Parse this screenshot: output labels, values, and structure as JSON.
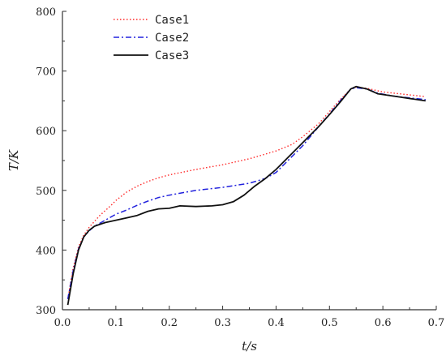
{
  "chart_data": {
    "type": "line",
    "title": "",
    "xlabel": "t/s",
    "ylabel": "T/K",
    "xlim": [
      0.0,
      0.7
    ],
    "ylim": [
      300,
      800
    ],
    "x_ticks": [
      0.0,
      0.1,
      0.2,
      0.3,
      0.4,
      0.5,
      0.6,
      0.7
    ],
    "x_tick_labels": [
      "0.0",
      "0.1",
      "0.2",
      "0.3",
      "0.4",
      "0.5",
      "0.6",
      "0.7"
    ],
    "y_ticks": [
      300,
      400,
      500,
      600,
      700,
      800
    ],
    "y_tick_labels": [
      "300",
      "400",
      "500",
      "600",
      "700",
      "800"
    ],
    "grid": false,
    "legend_position": "top-left",
    "series": [
      {
        "name": "Case1",
        "color": "#ff2a2a",
        "style": "dotted",
        "points": [
          [
            0.01,
            318
          ],
          [
            0.02,
            370
          ],
          [
            0.03,
            405
          ],
          [
            0.04,
            425
          ],
          [
            0.05,
            438
          ],
          [
            0.06,
            448
          ],
          [
            0.07,
            458
          ],
          [
            0.08,
            466
          ],
          [
            0.09,
            474
          ],
          [
            0.1,
            483
          ],
          [
            0.12,
            497
          ],
          [
            0.14,
            507
          ],
          [
            0.16,
            515
          ],
          [
            0.18,
            521
          ],
          [
            0.2,
            526
          ],
          [
            0.25,
            535
          ],
          [
            0.3,
            543
          ],
          [
            0.35,
            553
          ],
          [
            0.4,
            566
          ],
          [
            0.43,
            577
          ],
          [
            0.45,
            590
          ],
          [
            0.48,
            612
          ],
          [
            0.5,
            632
          ],
          [
            0.52,
            652
          ],
          [
            0.54,
            670
          ],
          [
            0.55,
            673
          ],
          [
            0.57,
            671
          ],
          [
            0.6,
            665
          ],
          [
            0.65,
            660
          ],
          [
            0.68,
            657
          ]
        ]
      },
      {
        "name": "Case2",
        "color": "#2222dd",
        "style": "dashdot",
        "points": [
          [
            0.01,
            318
          ],
          [
            0.02,
            365
          ],
          [
            0.03,
            402
          ],
          [
            0.04,
            422
          ],
          [
            0.05,
            432
          ],
          [
            0.06,
            440
          ],
          [
            0.08,
            450
          ],
          [
            0.1,
            460
          ],
          [
            0.12,
            467
          ],
          [
            0.14,
            475
          ],
          [
            0.16,
            482
          ],
          [
            0.18,
            488
          ],
          [
            0.2,
            492
          ],
          [
            0.25,
            500
          ],
          [
            0.3,
            505
          ],
          [
            0.35,
            512
          ],
          [
            0.38,
            520
          ],
          [
            0.4,
            530
          ],
          [
            0.42,
            548
          ],
          [
            0.45,
            575
          ],
          [
            0.48,
            607
          ],
          [
            0.5,
            628
          ],
          [
            0.52,
            650
          ],
          [
            0.54,
            670
          ],
          [
            0.55,
            672
          ],
          [
            0.57,
            670
          ],
          [
            0.59,
            663
          ],
          [
            0.62,
            658
          ],
          [
            0.68,
            652
          ]
        ]
      },
      {
        "name": "Case3",
        "color": "#111111",
        "style": "solid",
        "points": [
          [
            0.01,
            308
          ],
          [
            0.02,
            360
          ],
          [
            0.03,
            400
          ],
          [
            0.04,
            422
          ],
          [
            0.05,
            433
          ],
          [
            0.06,
            440
          ],
          [
            0.08,
            446
          ],
          [
            0.1,
            450
          ],
          [
            0.12,
            454
          ],
          [
            0.14,
            458
          ],
          [
            0.16,
            465
          ],
          [
            0.18,
            469
          ],
          [
            0.2,
            470
          ],
          [
            0.22,
            474
          ],
          [
            0.25,
            473
          ],
          [
            0.28,
            474
          ],
          [
            0.3,
            476
          ],
          [
            0.32,
            481
          ],
          [
            0.34,
            492
          ],
          [
            0.36,
            507
          ],
          [
            0.38,
            520
          ],
          [
            0.4,
            535
          ],
          [
            0.42,
            553
          ],
          [
            0.45,
            580
          ],
          [
            0.48,
            607
          ],
          [
            0.5,
            627
          ],
          [
            0.52,
            648
          ],
          [
            0.54,
            670
          ],
          [
            0.55,
            674
          ],
          [
            0.57,
            670
          ],
          [
            0.59,
            662
          ],
          [
            0.62,
            658
          ],
          [
            0.68,
            650
          ]
        ]
      }
    ]
  }
}
